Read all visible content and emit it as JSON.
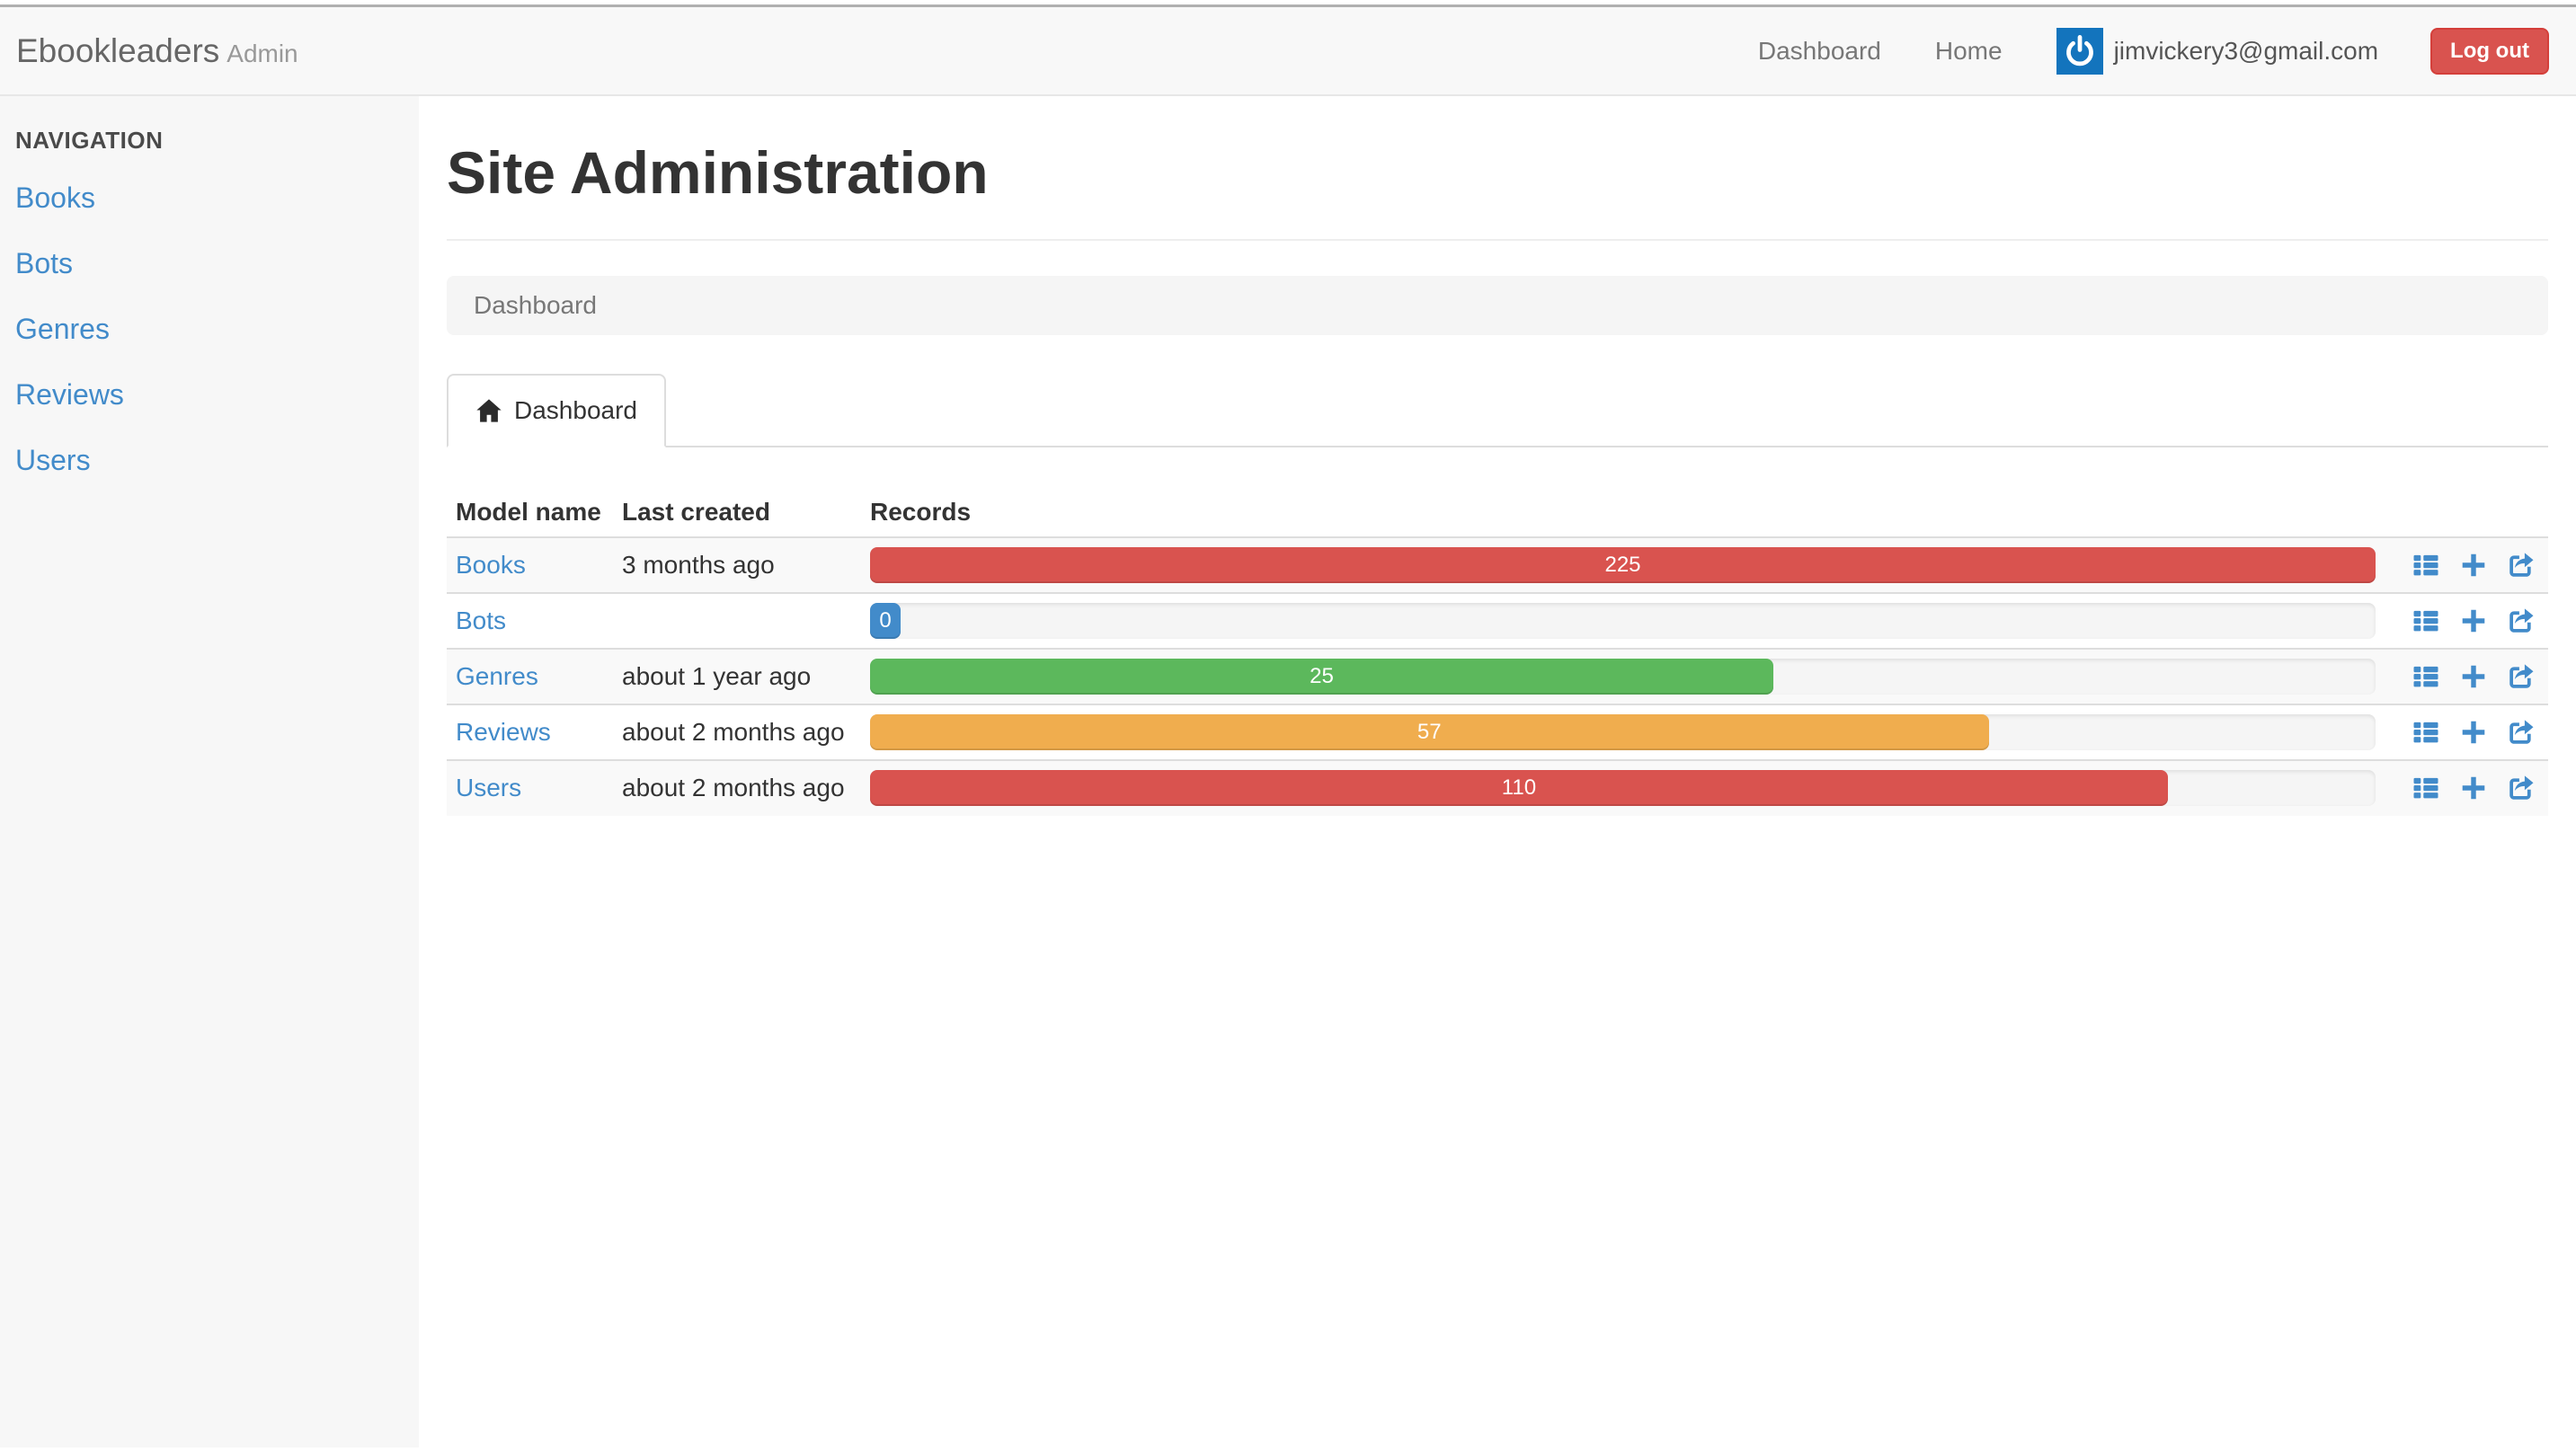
{
  "header": {
    "brand": "Ebookleaders",
    "brand_suffix": "Admin",
    "nav_dashboard": "Dashboard",
    "nav_home": "Home",
    "user_email": "jimvickery3@gmail.com",
    "logout_label": "Log out",
    "avatar_icon": "power-icon"
  },
  "sidebar": {
    "title": "NAVIGATION",
    "items": [
      {
        "label": "Books"
      },
      {
        "label": "Bots"
      },
      {
        "label": "Genres"
      },
      {
        "label": "Reviews"
      },
      {
        "label": "Users"
      }
    ]
  },
  "main": {
    "title": "Site Administration",
    "breadcrumb": "Dashboard",
    "tab_label": "Dashboard",
    "tab_icon": "home-icon",
    "table": {
      "columns": [
        "Model name",
        "Last created",
        "Records"
      ],
      "row_action_icons": [
        "list-icon",
        "add-icon",
        "export-icon"
      ],
      "rows": [
        {
          "model": "Books",
          "last_created": "3 months ago",
          "records": 225,
          "percent": 100,
          "color": "#d9534f"
        },
        {
          "model": "Bots",
          "last_created": "",
          "records": 0,
          "percent": 2,
          "color": "#428bca"
        },
        {
          "model": "Genres",
          "last_created": "about 1 year ago",
          "records": 25,
          "percent": 60,
          "color": "#5cb85c"
        },
        {
          "model": "Reviews",
          "last_created": "about 2 months ago",
          "records": 57,
          "percent": 74.3,
          "color": "#f0ad4e"
        },
        {
          "model": "Users",
          "last_created": "about 2 months ago",
          "records": 110,
          "percent": 86.2,
          "color": "#d9534f"
        }
      ]
    }
  },
  "colors": {
    "link_blue": "#428bca",
    "danger_red": "#d9534f",
    "success_green": "#5cb85c",
    "warning_orange": "#f0ad4e",
    "navbar_bg": "#f8f8f8",
    "sidebar_bg": "#f7f7f7",
    "avatar_bg": "#1374bd"
  }
}
